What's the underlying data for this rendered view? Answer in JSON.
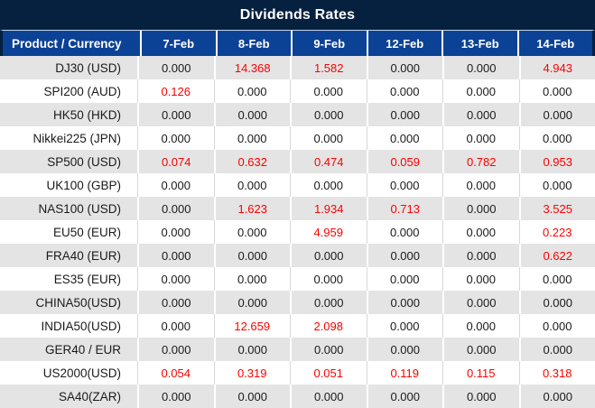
{
  "chart_data": {
    "type": "table",
    "title": "Dividends Rates",
    "row_header_label": "Product / Currency",
    "columns": [
      "7-Feb",
      "8-Feb",
      "9-Feb",
      "12-Feb",
      "13-Feb",
      "14-Feb"
    ],
    "rows": [
      {
        "product": "DJ30 (USD)",
        "values": [
          "0.000",
          "14.368",
          "1.582",
          "0.000",
          "0.000",
          "4.943"
        ]
      },
      {
        "product": "SPI200 (AUD)",
        "values": [
          "0.126",
          "0.000",
          "0.000",
          "0.000",
          "0.000",
          "0.000"
        ]
      },
      {
        "product": "HK50 (HKD)",
        "values": [
          "0.000",
          "0.000",
          "0.000",
          "0.000",
          "0.000",
          "0.000"
        ]
      },
      {
        "product": "Nikkei225 (JPN)",
        "values": [
          "0.000",
          "0.000",
          "0.000",
          "0.000",
          "0.000",
          "0.000"
        ]
      },
      {
        "product": "SP500 (USD)",
        "values": [
          "0.074",
          "0.632",
          "0.474",
          "0.059",
          "0.782",
          "0.953"
        ]
      },
      {
        "product": "UK100 (GBP)",
        "values": [
          "0.000",
          "0.000",
          "0.000",
          "0.000",
          "0.000",
          "0.000"
        ]
      },
      {
        "product": "NAS100 (USD)",
        "values": [
          "0.000",
          "1.623",
          "1.934",
          "0.713",
          "0.000",
          "3.525"
        ]
      },
      {
        "product": "EU50 (EUR)",
        "values": [
          "0.000",
          "0.000",
          "4.959",
          "0.000",
          "0.000",
          "0.223"
        ]
      },
      {
        "product": "FRA40 (EUR)",
        "values": [
          "0.000",
          "0.000",
          "0.000",
          "0.000",
          "0.000",
          "0.622"
        ]
      },
      {
        "product": "ES35 (EUR)",
        "values": [
          "0.000",
          "0.000",
          "0.000",
          "0.000",
          "0.000",
          "0.000"
        ]
      },
      {
        "product": "CHINA50(USD)",
        "values": [
          "0.000",
          "0.000",
          "0.000",
          "0.000",
          "0.000",
          "0.000"
        ]
      },
      {
        "product": "INDIA50(USD)",
        "values": [
          "0.000",
          "12.659",
          "2.098",
          "0.000",
          "0.000",
          "0.000"
        ]
      },
      {
        "product": "GER40 / EUR",
        "values": [
          "0.000",
          "0.000",
          "0.000",
          "0.000",
          "0.000",
          "0.000"
        ]
      },
      {
        "product": "US2000(USD)",
        "values": [
          "0.054",
          "0.319",
          "0.051",
          "0.119",
          "0.115",
          "0.318"
        ]
      },
      {
        "product": "SA40(ZAR)",
        "values": [
          "0.000",
          "0.000",
          "0.000",
          "0.000",
          "0.000",
          "0.000"
        ]
      }
    ],
    "colors": {
      "title_bg": "#06203F",
      "header_bg": "#0C4296",
      "header_text": "#FFFFFF",
      "row_alt_bg": "#E4E4E4",
      "row_bg": "#FFFFFF",
      "value_zero_text": "#1A1A1A",
      "value_nonzero_text": "#FF0000"
    },
    "layout": {
      "legend": "none",
      "grid": "cell-borders",
      "highlight_rule": "non-zero values shown in red"
    }
  }
}
